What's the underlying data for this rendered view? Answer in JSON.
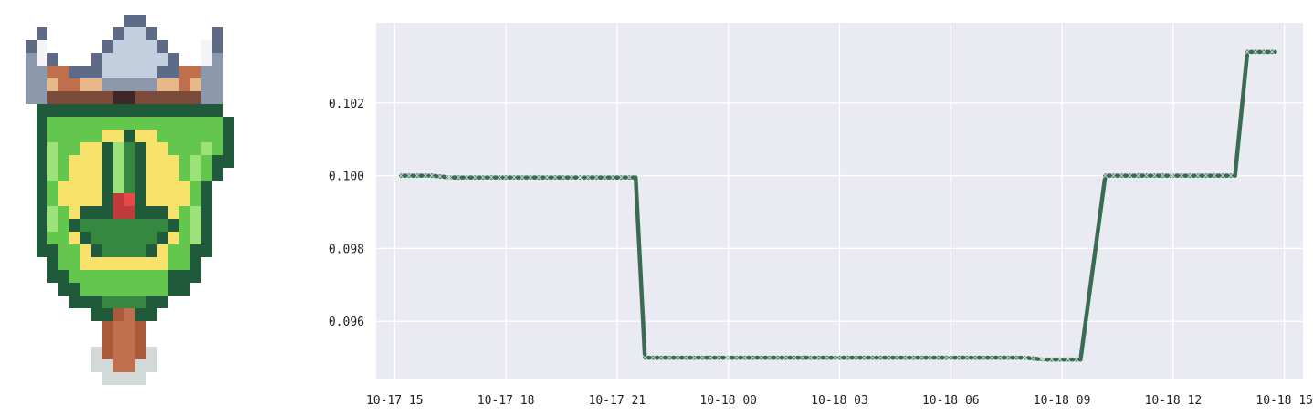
{
  "chart_data": {
    "type": "line",
    "title": "",
    "xlabel": "",
    "ylabel": "",
    "x_axis": "datetime",
    "xlim": [
      "2023-10-17 14:30",
      "2023-10-18 15:30"
    ],
    "ylim": [
      0.0944,
      0.1042
    ],
    "x_ticks": [
      "10-17 15",
      "10-17 18",
      "10-17 21",
      "10-18 00",
      "10-18 03",
      "10-18 06",
      "10-18 09",
      "10-18 12",
      "10-18 15"
    ],
    "y_ticks": [
      "0.096",
      "0.098",
      "0.100",
      "0.102"
    ],
    "grid": true,
    "legend": "none",
    "series": [
      {
        "color": "#3b6b52",
        "marker": "x",
        "x": [
          "2023-10-17 15:10",
          "2023-10-17 16:00",
          "2023-10-17 16:30",
          "2023-10-17 18:00",
          "2023-10-17 20:00",
          "2023-10-17 21:30",
          "2023-10-17 21:45",
          "2023-10-18 00:00",
          "2023-10-18 03:00",
          "2023-10-18 06:00",
          "2023-10-18 08:00",
          "2023-10-18 08:30",
          "2023-10-18 09:30",
          "2023-10-18 10:10",
          "2023-10-18 12:00",
          "2023-10-18 13:40",
          "2023-10-18 14:00",
          "2023-10-18 14:45"
        ],
        "values": [
          0.1,
          0.1,
          0.09995,
          0.09995,
          0.09995,
          0.09995,
          0.095,
          0.095,
          0.095,
          0.095,
          0.095,
          0.09495,
          0.09495,
          0.1,
          0.1,
          0.1,
          0.1034,
          0.1034
        ]
      }
    ]
  },
  "emblem": {
    "kind": "pixel-art",
    "description_icon": "green banner shield with sword and horned helmet crest"
  }
}
